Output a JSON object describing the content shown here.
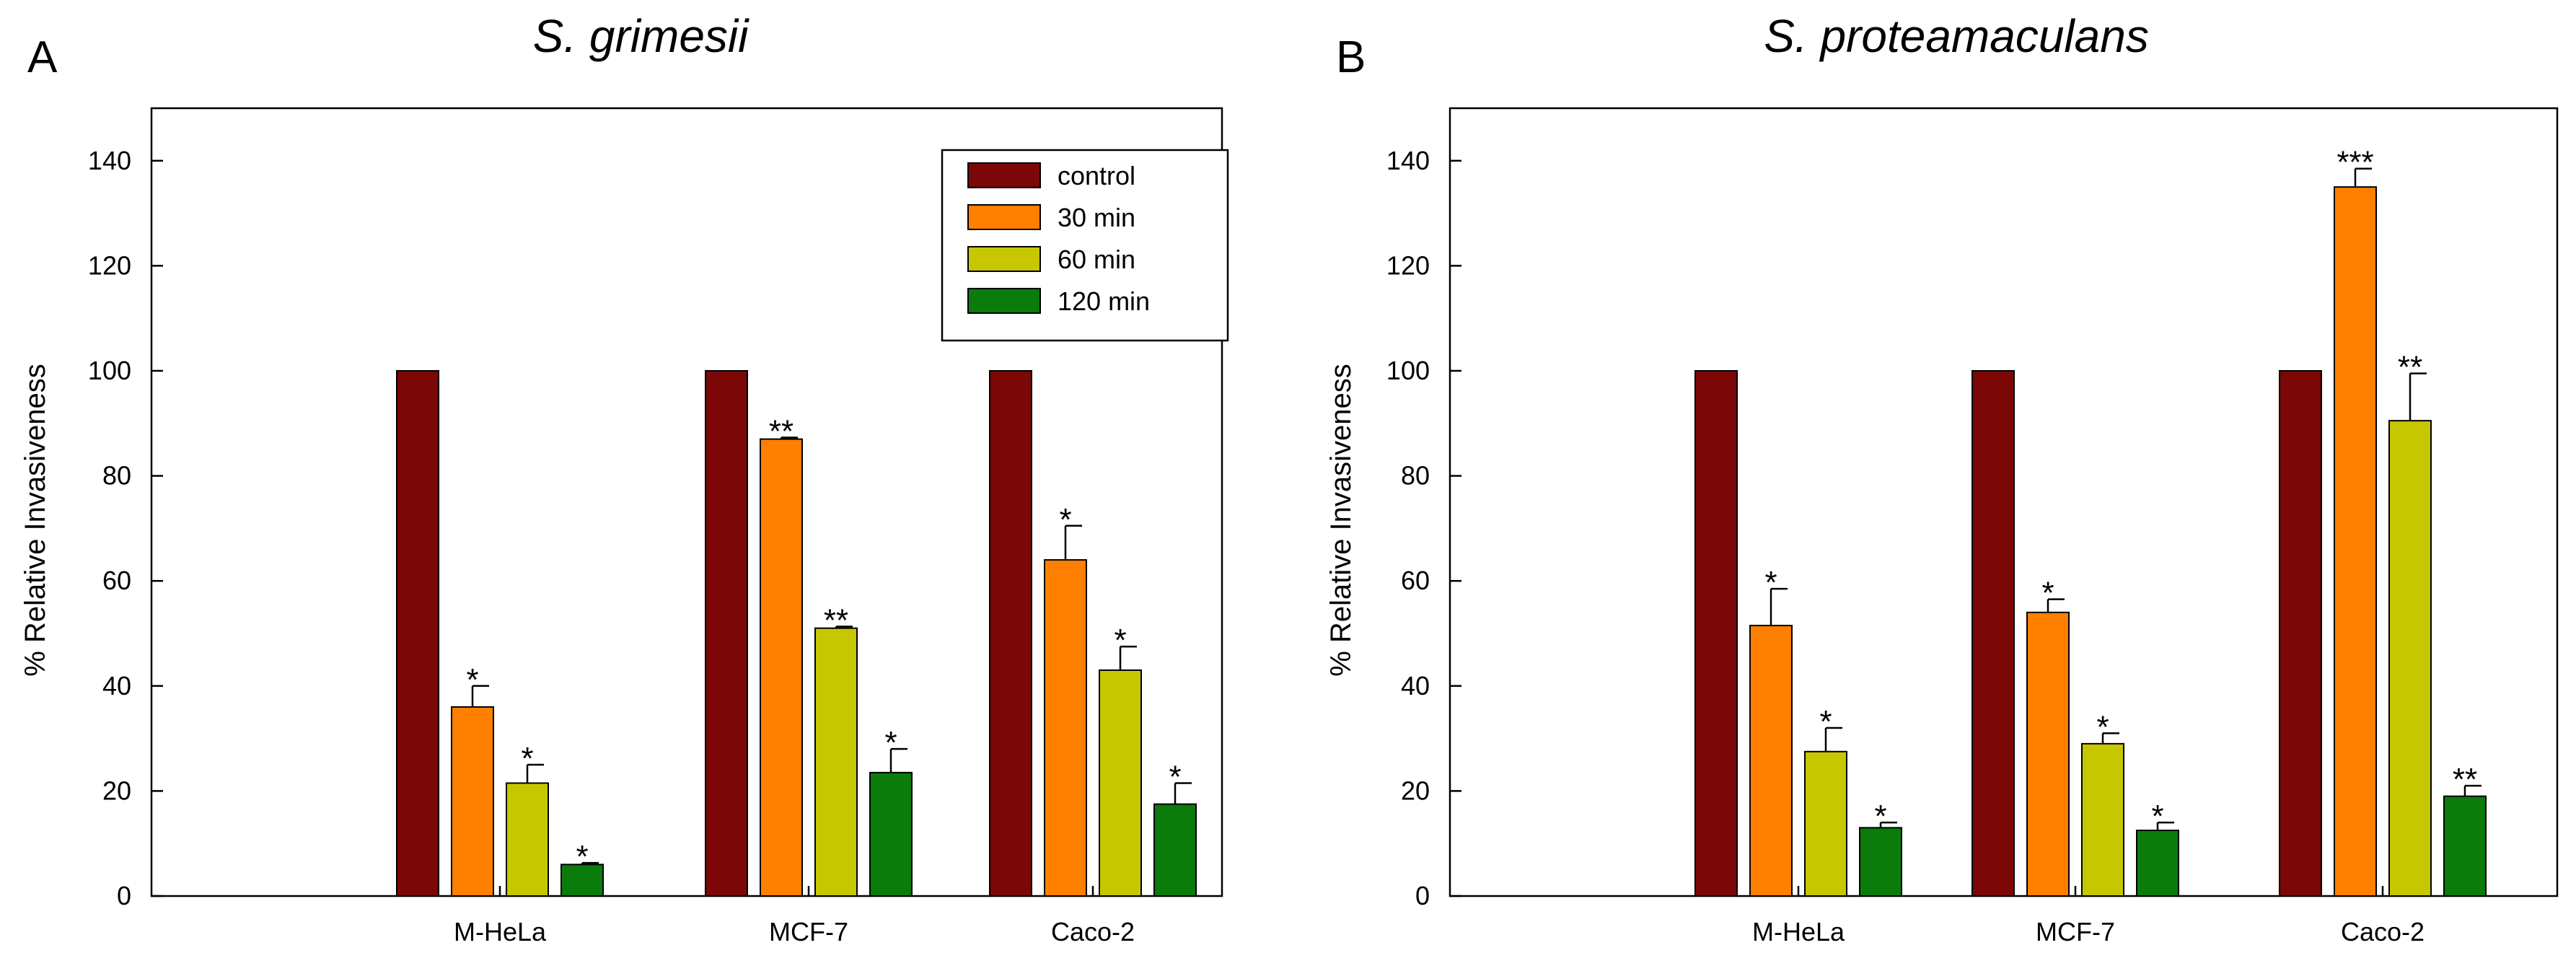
{
  "colors": {
    "control": "#7b0707",
    "30 min": "#ff8000",
    "60 min": "#c7c700",
    "120 min": "#0b7b0b"
  },
  "chart_data": [
    {
      "type": "bar",
      "panel_label": "A",
      "title": "S. grimesii",
      "ylabel": "% Relative Invasiveness",
      "xlabel": "",
      "ylim": [
        0,
        150
      ],
      "yticks": [
        "0",
        "20",
        "40",
        "60",
        "80",
        "100",
        "120",
        "140"
      ],
      "categories": [
        "M-HeLa",
        "MCF-7",
        "Caco-2"
      ],
      "legend": {
        "position": "top-right",
        "show": true
      },
      "grid": false,
      "series": [
        {
          "name": "control",
          "values": [
            100,
            100,
            100
          ],
          "errors": [
            0,
            0,
            0
          ],
          "significance": [
            "",
            "",
            ""
          ]
        },
        {
          "name": "30 min",
          "values": [
            36,
            87,
            64
          ],
          "errors": [
            4,
            0.3,
            6.5
          ],
          "significance": [
            "*",
            "**",
            "*"
          ]
        },
        {
          "name": "60 min",
          "values": [
            21.5,
            51,
            43
          ],
          "errors": [
            3.5,
            0.3,
            4.5
          ],
          "significance": [
            "*",
            "**",
            "*"
          ]
        },
        {
          "name": "120 min",
          "values": [
            6,
            23.5,
            17.5
          ],
          "errors": [
            0.3,
            4.5,
            4
          ],
          "significance": [
            "*",
            "*",
            "*"
          ]
        }
      ]
    },
    {
      "type": "bar",
      "panel_label": "B",
      "title": "S. proteamaculans",
      "ylabel": "% Relative Invasiveness",
      "xlabel": "",
      "ylim": [
        0,
        150
      ],
      "yticks": [
        "0",
        "20",
        "40",
        "60",
        "80",
        "100",
        "120",
        "140"
      ],
      "categories": [
        "M-HeLa",
        "MCF-7",
        "Caco-2"
      ],
      "legend": {
        "show": false
      },
      "grid": false,
      "series": [
        {
          "name": "control",
          "values": [
            100,
            100,
            100
          ],
          "errors": [
            0,
            0,
            0
          ],
          "significance": [
            "",
            "",
            ""
          ]
        },
        {
          "name": "30 min",
          "values": [
            51.5,
            54,
            135
          ],
          "errors": [
            7,
            2.5,
            3.5
          ],
          "significance": [
            "*",
            "*",
            "***"
          ]
        },
        {
          "name": "60 min",
          "values": [
            27.5,
            29,
            90.5
          ],
          "errors": [
            4.5,
            2,
            9
          ],
          "significance": [
            "*",
            "*",
            "**"
          ]
        },
        {
          "name": "120 min",
          "values": [
            13,
            12.5,
            19
          ],
          "errors": [
            1,
            1.5,
            2
          ],
          "significance": [
            "*",
            "*",
            "**"
          ]
        }
      ]
    }
  ]
}
